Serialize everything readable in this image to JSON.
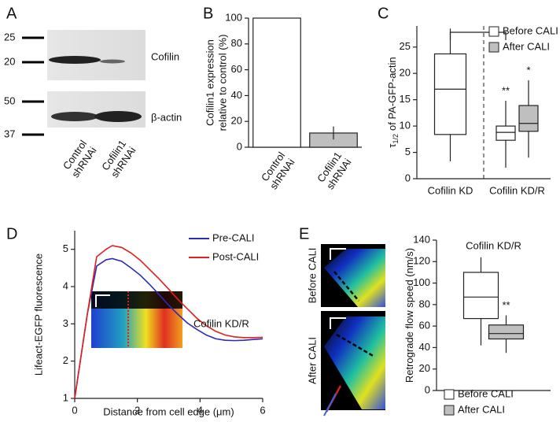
{
  "panel_labels": [
    "A",
    "B",
    "C",
    "D",
    "E"
  ],
  "blot": {
    "markers": [
      "25",
      "20",
      "50",
      "37"
    ],
    "bands": [
      "Cofilin",
      "β-actin"
    ],
    "lanes": [
      [
        "Control",
        "shRNAi"
      ],
      [
        "Cofilin1",
        "shRNAi"
      ]
    ]
  },
  "kymograph_labels": [
    "Before CALI",
    "After CALI"
  ],
  "chart_data": [
    {
      "type": "bar",
      "ylabel": [
        "Cofilin1 expression",
        "relative to control (%)"
      ],
      "categories": [
        [
          "Control",
          "shRNAi"
        ],
        [
          "Cofilin1",
          "shRNAi"
        ]
      ],
      "values": [
        100,
        11
      ],
      "errors": [
        0,
        5
      ],
      "colors": [
        "#ffffff",
        "#bfbfbf"
      ],
      "ylim": [
        0,
        100
      ],
      "yticks": [
        0,
        20,
        40,
        60,
        80,
        100
      ]
    },
    {
      "type": "box",
      "ylabel": {
        "symbol": "τ",
        "subscript": "1/2",
        "text": "of PA-GFP-actin"
      },
      "groups": [
        {
          "label": "Cofilin KD",
          "boxes": [
            {
              "color": "#ffffff",
              "whisker_low": 3.3,
              "q1": 8.4,
              "median": 17,
              "q3": 23.7,
              "whisker_high": 28.5
            }
          ]
        },
        {
          "label": "Cofilin KD/R",
          "boxes": [
            {
              "color": "#ffffff",
              "whisker_low": 2.1,
              "q1": 7.3,
              "median": 8.8,
              "q3": 10,
              "whisker_high": 14.8,
              "annotation": "**"
            },
            {
              "color": "#bfbfbf",
              "whisker_low": 4,
              "q1": 9,
              "median": 10.5,
              "q3": 13.9,
              "whisker_high": 18.7,
              "annotation": "*"
            }
          ]
        }
      ],
      "legend": [
        {
          "label": "Before CALI",
          "color": "#ffffff"
        },
        {
          "label": "After CALI",
          "color": "#bfbfbf"
        }
      ],
      "ylim": [
        0,
        29
      ],
      "yticks": [
        0,
        5,
        10,
        15,
        20,
        25
      ]
    },
    {
      "type": "line",
      "xlabel": "Distance from cell edge (μm)",
      "ylabel": "Lifeact-EGFP fluorescence",
      "annotation": "Cofilin KD/R",
      "legend_position": "upper right",
      "x": [
        0,
        0.4,
        0.7,
        1.0,
        1.2,
        1.5,
        1.8,
        2.1,
        2.4,
        2.7,
        3.0,
        3.3,
        3.6,
        3.9,
        4.2,
        4.5,
        4.8,
        5.1,
        5.4,
        5.7,
        6.0
      ],
      "series": [
        {
          "name": "Pre-CALI",
          "color": "#2b2bb8",
          "values": [
            1,
            3.25,
            4.55,
            4.72,
            4.75,
            4.68,
            4.5,
            4.3,
            4.05,
            3.78,
            3.5,
            3.25,
            3.02,
            2.85,
            2.7,
            2.6,
            2.56,
            2.55,
            2.56,
            2.58,
            2.6
          ]
        },
        {
          "name": "Post-CALI",
          "color": "#e02020",
          "values": [
            1,
            3.25,
            4.8,
            5.0,
            5.1,
            5.05,
            4.9,
            4.7,
            4.45,
            4.2,
            3.93,
            3.65,
            3.4,
            3.15,
            2.95,
            2.8,
            2.7,
            2.65,
            2.63,
            2.63,
            2.64
          ]
        }
      ],
      "xlim": [
        0,
        6
      ],
      "xticks": [
        0,
        2,
        4,
        6
      ],
      "ylim": [
        1,
        5.5
      ],
      "yticks": [
        1,
        2,
        3,
        4,
        5
      ]
    },
    {
      "type": "box",
      "title": "Cofilin KD/R",
      "ylabel": {
        "text": "Retrograde flow speed (nm/s)"
      },
      "groups": [
        {
          "boxes": [
            {
              "color": "#ffffff",
              "whisker_low": 42,
              "q1": 67,
              "median": 87,
              "q3": 110,
              "whisker_high": 124
            },
            {
              "color": "#bfbfbf",
              "whisker_low": 35,
              "q1": 48,
              "median": 53,
              "q3": 61,
              "whisker_high": 70,
              "annotation": "**"
            }
          ]
        }
      ],
      "legend": [
        {
          "label": "Before CALI",
          "color": "#ffffff"
        },
        {
          "label": "After CALI",
          "color": "#bfbfbf"
        }
      ],
      "ylim": [
        0,
        140
      ],
      "yticks": [
        0,
        20,
        40,
        60,
        80,
        100,
        120,
        140
      ]
    }
  ]
}
